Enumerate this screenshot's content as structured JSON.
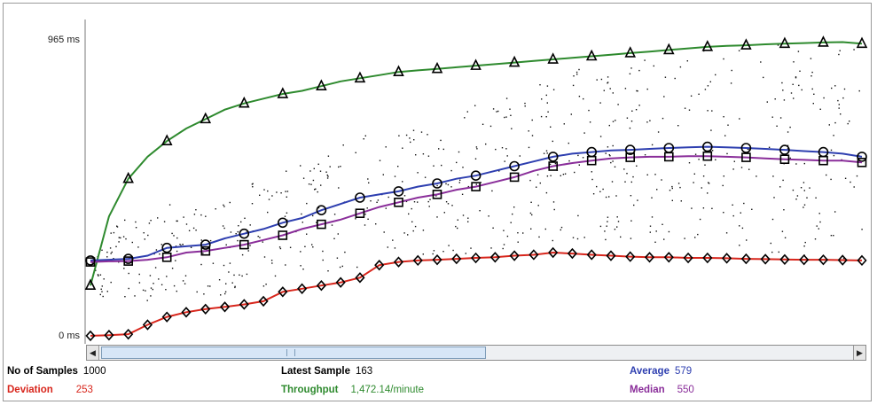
{
  "labels": {
    "samples_label": "No of Samples",
    "samples_value": "1000",
    "deviation_label": "Deviation",
    "deviation_value": "253",
    "latest_label": "Latest Sample",
    "latest_value": "163",
    "throughput_label": "Throughput",
    "throughput_value": "1,472.14/minute",
    "average_label": "Average",
    "average_value": "579",
    "median_label": "Median",
    "median_value": "550"
  },
  "colors": {
    "deviation": "#d8261c",
    "throughput": "#2e8a2e",
    "average": "#2e3fb0",
    "median": "#8a2e9a",
    "data": "#111111"
  },
  "chart_data": {
    "type": "line",
    "yaxis_labels": [
      "965 ms",
      "0 ms"
    ],
    "ylim": [
      0,
      965
    ],
    "x": [
      1,
      25,
      50,
      75,
      100,
      125,
      150,
      175,
      200,
      225,
      250,
      275,
      300,
      325,
      350,
      375,
      400,
      425,
      450,
      475,
      500,
      525,
      550,
      575,
      600,
      625,
      650,
      675,
      700,
      725,
      750,
      775,
      800,
      825,
      850,
      875,
      900,
      925,
      950,
      975,
      1000
    ],
    "series": [
      {
        "name": "Throughput",
        "values": [
          180,
          400,
          520,
          590,
          640,
          680,
          710,
          740,
          760,
          775,
          790,
          800,
          815,
          830,
          840,
          850,
          860,
          865,
          870,
          875,
          880,
          885,
          890,
          895,
          900,
          905,
          910,
          915,
          920,
          925,
          930,
          935,
          940,
          943,
          945,
          948,
          950,
          952,
          954,
          955,
          950
        ]
      },
      {
        "name": "Average",
        "values": [
          260,
          262,
          265,
          275,
          300,
          305,
          310,
          330,
          345,
          360,
          380,
          395,
          420,
          440,
          460,
          470,
          480,
          495,
          505,
          520,
          530,
          545,
          560,
          575,
          590,
          600,
          605,
          610,
          612,
          615,
          618,
          620,
          622,
          620,
          618,
          615,
          612,
          608,
          605,
          600,
          590
        ]
      },
      {
        "name": "Median",
        "values": [
          255,
          257,
          258,
          262,
          270,
          285,
          290,
          300,
          310,
          325,
          340,
          360,
          375,
          390,
          410,
          430,
          445,
          460,
          470,
          485,
          495,
          510,
          525,
          545,
          560,
          570,
          578,
          585,
          588,
          590,
          590,
          592,
          592,
          590,
          588,
          585,
          582,
          580,
          578,
          578,
          572
        ]
      },
      {
        "name": "Deviation",
        "values": [
          20,
          22,
          25,
          55,
          80,
          95,
          105,
          112,
          120,
          130,
          160,
          170,
          180,
          190,
          205,
          245,
          255,
          260,
          262,
          265,
          268,
          270,
          275,
          278,
          285,
          282,
          278,
          275,
          272,
          270,
          270,
          268,
          268,
          267,
          265,
          264,
          263,
          262,
          262,
          261,
          260
        ]
      }
    ]
  }
}
